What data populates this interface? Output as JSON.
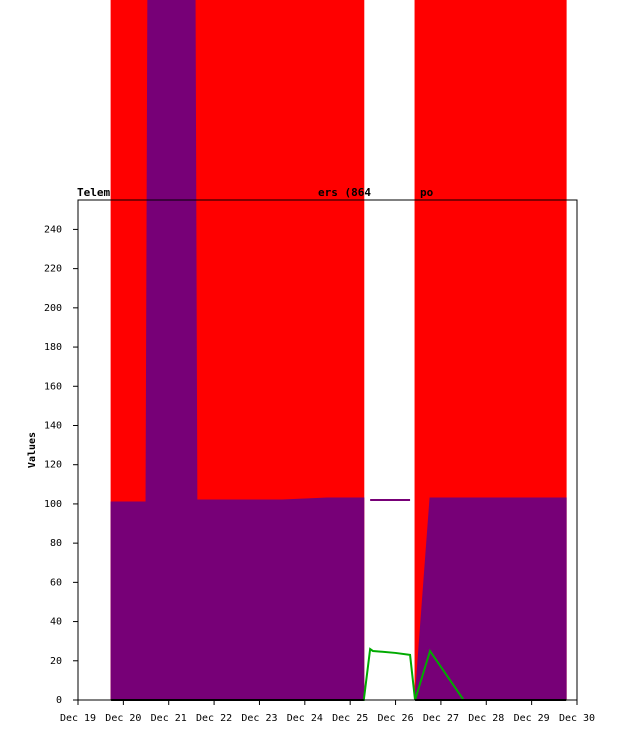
{
  "chart_data": {
    "type": "area",
    "title_fragments": [
      "Telem",
      "ers (864",
      "po"
    ],
    "ylabel": "Values",
    "x": [
      19.73,
      20.5,
      20.54,
      21.58,
      21.62,
      22.5,
      23.5,
      24.5,
      25.3,
      25.44,
      25.5,
      26.0,
      26.32,
      26.43,
      26.76,
      27.5,
      28.5,
      29.76
    ],
    "series": [
      {
        "name": "red",
        "color": "#ff0000",
        "fill": true,
        "values": [
          360,
          360,
          360,
          360,
          360,
          360,
          360,
          360,
          360,
          null,
          null,
          null,
          null,
          360,
          360,
          360,
          360,
          360
        ]
      },
      {
        "name": "purple",
        "color": "#770077",
        "fill": true,
        "values": [
          101,
          101,
          360,
          360,
          102,
          102,
          102,
          103,
          103,
          null,
          null,
          null,
          null,
          0,
          103,
          103,
          103,
          103
        ]
      },
      {
        "name": "purple-outline",
        "color": "#770077",
        "fill": false,
        "values": [
          null,
          null,
          null,
          null,
          null,
          null,
          null,
          null,
          null,
          102,
          102,
          102,
          102,
          null,
          null,
          null,
          null,
          null
        ]
      },
      {
        "name": "green",
        "color": "#00aa00",
        "fill": false,
        "values": [
          0,
          0,
          0,
          0,
          0,
          0,
          0,
          0,
          0,
          26,
          25,
          24,
          23,
          0,
          25,
          0,
          0,
          0
        ]
      },
      {
        "name": "black",
        "color": "#000000",
        "fill": false,
        "values": [
          0,
          0,
          0,
          0,
          0,
          0,
          0,
          0,
          0,
          null,
          null,
          null,
          null,
          0,
          0,
          0,
          0,
          0
        ]
      }
    ],
    "xlim": [
      19,
      30
    ],
    "ylim": [
      0,
      255
    ],
    "xticks": [
      {
        "value": 19,
        "label": "Dec 19"
      },
      {
        "value": 20,
        "label": "Dec 20"
      },
      {
        "value": 21,
        "label": "Dec 21"
      },
      {
        "value": 22,
        "label": "Dec 22"
      },
      {
        "value": 23,
        "label": "Dec 23"
      },
      {
        "value": 24,
        "label": "Dec 24"
      },
      {
        "value": 25,
        "label": "Dec 25"
      },
      {
        "value": 26,
        "label": "Dec 26"
      },
      {
        "value": 27,
        "label": "Dec 27"
      },
      {
        "value": 28,
        "label": "Dec 28"
      },
      {
        "value": 29,
        "label": "Dec 29"
      },
      {
        "value": 30,
        "label": "Dec 30"
      }
    ],
    "yticks": [
      0,
      20,
      40,
      60,
      80,
      100,
      120,
      140,
      160,
      180,
      200,
      220,
      240
    ]
  }
}
